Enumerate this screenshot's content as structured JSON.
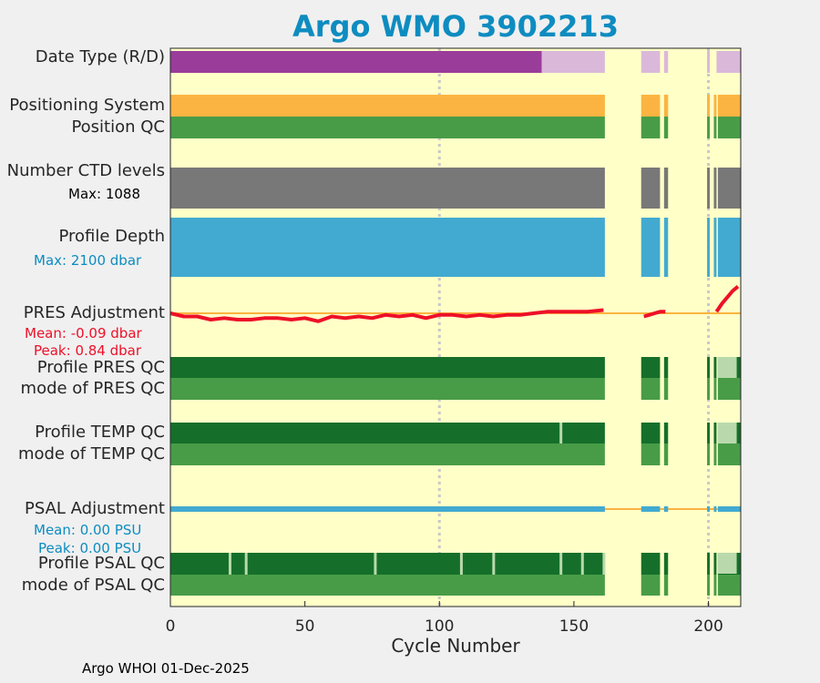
{
  "title": "Argo WMO 3902213",
  "footer": "Argo WHOI 01-Dec-2025",
  "colors": {
    "background": "#ffffc8",
    "delayed": "#9a3c9a",
    "realtime": "#dab8da",
    "positioning": "#fbb441",
    "qc_good": "#489c47",
    "qc_profile_a": "#156f2a",
    "qc_profile_light": "#b9d9ac",
    "ctd": "#787878",
    "depth": "#42aad0",
    "pres_adj": "#ee1028",
    "zero_line": "#fbb441",
    "grid": "#c8c8c8"
  },
  "row_labels": {
    "date_type": "Date Type (R/D)",
    "positioning": "Positioning System",
    "position_qc": "Position QC",
    "ctd_levels": "Number CTD levels",
    "profile_depth": "Profile Depth",
    "pres_adjustment": "PRES Adjustment",
    "profile_pres_qc": "Profile PRES QC",
    "mode_pres_qc": "mode of PRES QC",
    "profile_temp_qc": "Profile TEMP QC",
    "mode_temp_qc": "mode of TEMP QC",
    "psal_adjustment": "PSAL Adjustment",
    "profile_psal_qc": "Profile PSAL QC",
    "mode_psal_qc": "mode of PSAL QC"
  },
  "annotations": {
    "ctd_max": "Max: 1088",
    "depth_max": "Max: 2100 dbar",
    "pres_mean": "Mean: -0.09 dbar",
    "pres_peak": "Peak: 0.84 dbar",
    "psal_mean": "Mean: 0.00 PSU",
    "psal_peak": "Peak: 0.00 PSU"
  },
  "chart_data": {
    "type": "bar",
    "title": "Argo WMO 3902213",
    "xlabel": "Cycle Number",
    "xlim": [
      0,
      212
    ],
    "xticks": [
      0,
      50,
      100,
      150,
      200
    ],
    "grid_x": [
      100,
      200
    ],
    "data_segments": [
      [
        0,
        161.5
      ],
      [
        175,
        182
      ],
      [
        183.5,
        185
      ],
      [
        199.5,
        200.5
      ],
      [
        202,
        203
      ],
      [
        203.5,
        212
      ]
    ],
    "date_type_segments": [
      {
        "range": [
          0,
          138
        ],
        "mode": "D"
      },
      {
        "range": [
          138,
          161.5
        ],
        "mode": "R"
      },
      {
        "range": [
          175,
          182
        ],
        "mode": "R"
      },
      {
        "range": [
          183.5,
          185
        ],
        "mode": "R"
      },
      {
        "range": [
          199.5,
          200.5
        ],
        "mode": "R"
      },
      {
        "range": [
          203,
          212
        ],
        "mode": "R"
      }
    ],
    "ctd_levels_max": 1088,
    "profile_depth_max_dbar": 2100,
    "pres_adjustment_dbar": {
      "mean": -0.09,
      "peak": 0.84,
      "cycles": [
        0,
        5,
        10,
        15,
        20,
        25,
        30,
        35,
        40,
        45,
        50,
        55,
        60,
        65,
        70,
        75,
        80,
        85,
        90,
        95,
        100,
        105,
        110,
        115,
        120,
        125,
        130,
        135,
        140,
        145,
        150,
        155,
        161,
        176,
        178,
        180,
        182,
        184,
        203,
        205,
        207,
        209,
        211
      ],
      "values": [
        0.0,
        -0.1,
        -0.1,
        -0.2,
        -0.15,
        -0.2,
        -0.2,
        -0.15,
        -0.15,
        -0.2,
        -0.15,
        -0.25,
        -0.1,
        -0.15,
        -0.1,
        -0.15,
        -0.05,
        -0.1,
        -0.05,
        -0.15,
        -0.05,
        -0.05,
        -0.1,
        -0.05,
        -0.1,
        -0.05,
        -0.05,
        0.0,
        0.05,
        0.05,
        0.05,
        0.05,
        0.1,
        -0.1,
        -0.05,
        0.0,
        0.05,
        0.05,
        0.05,
        0.3,
        0.5,
        0.7,
        0.84
      ]
    },
    "psal_adjustment_psu": {
      "mean": 0.0,
      "peak": 0.0
    },
    "profile_temp_qc_marks": [
      145
    ],
    "profile_psal_qc_marks": [
      22,
      28,
      76,
      108,
      120,
      145,
      153,
      161
    ],
    "profile_qc_light_segments": [
      [
        203.5,
        210.5
      ]
    ]
  }
}
